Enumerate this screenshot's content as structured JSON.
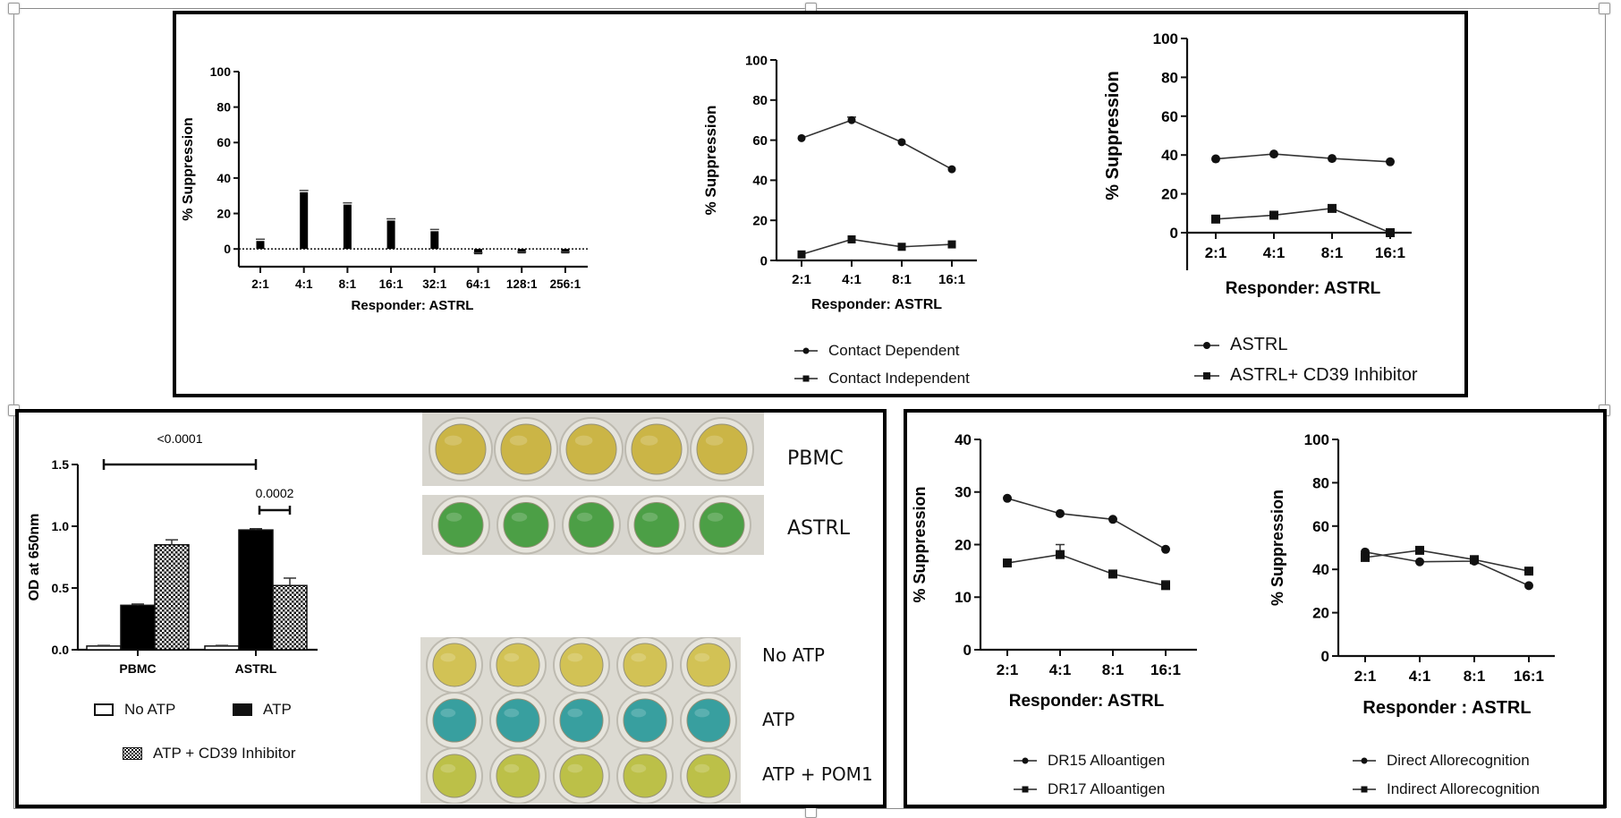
{
  "panels": {
    "top": {
      "chart_a": {
        "type": "bar",
        "title": "",
        "xlabel": "Responder: ASTRL",
        "ylabel": "% Suppression",
        "ylim": [
          -10,
          100
        ],
        "yticks": [
          0,
          20,
          40,
          60,
          80,
          100
        ],
        "ytick_labels": [
          "0",
          "20",
          "40",
          "60",
          "80",
          "100"
        ],
        "categories": [
          "2:1",
          "4:1",
          "8:1",
          "16:1",
          "32:1",
          "64:1",
          "128:1",
          "256:1"
        ],
        "values": [
          4.5,
          32,
          25,
          16,
          10,
          -3,
          -2.5,
          -2.5
        ],
        "errors": [
          1,
          1,
          1,
          1,
          1,
          0.8,
          0.8,
          0.8
        ],
        "reference_line": 0
      },
      "chart_b": {
        "type": "line",
        "xlabel": "Responder: ASTRL",
        "ylabel": "% Suppression",
        "ylim": [
          0,
          100
        ],
        "yticks": [
          0,
          20,
          40,
          60,
          80,
          100
        ],
        "ytick_labels": [
          "0",
          "20",
          "40",
          "60",
          "80",
          "100"
        ],
        "categories": [
          "2:1",
          "4:1",
          "8:1",
          "16:1"
        ],
        "series": [
          {
            "name": "Contact Dependent",
            "marker": "circle",
            "values": [
              61,
              70,
              59,
              45.5
            ],
            "errors": [
              0,
              1.5,
              0,
              0
            ]
          },
          {
            "name": "Contact Independent",
            "marker": "square",
            "values": [
              3,
              10.5,
              6.8,
              8
            ],
            "errors": [
              0,
              0,
              0,
              0
            ]
          }
        ]
      },
      "chart_c": {
        "type": "line",
        "xlabel": "Responder: ASTRL",
        "ylabel": "% Suppression",
        "ylim": [
          -20,
          100
        ],
        "yticks": [
          0,
          20,
          40,
          60,
          80,
          100
        ],
        "ytick_labels": [
          "0",
          "20",
          "40",
          "60",
          "80",
          "100"
        ],
        "categories": [
          "2:1",
          "4:1",
          "8:1",
          "16:1"
        ],
        "series": [
          {
            "name": "ASTRL",
            "marker": "circle",
            "values": [
              38,
              40.5,
              38.2,
              36.5
            ]
          },
          {
            "name": "ASTRL+ CD39 Inhibitor",
            "marker": "square",
            "values": [
              7,
              9,
              12.5,
              0
            ]
          }
        ]
      }
    },
    "bottom_left": {
      "chart_d": {
        "type": "bar",
        "xlabel": "",
        "ylabel": "OD at 650nm",
        "ylim": [
          0,
          1.5
        ],
        "yticks": [
          0,
          0.5,
          1.0,
          1.5
        ],
        "ytick_labels": [
          "0.0",
          "0.5",
          "1.0",
          "1.5"
        ],
        "categories": [
          "PBMC",
          "ASTRL"
        ],
        "series": [
          {
            "name": "No ATP",
            "fill": "white",
            "values": [
              0.03,
              0.03
            ],
            "errors": [
              0.005,
              0.005
            ]
          },
          {
            "name": "ATP",
            "fill": "black",
            "values": [
              0.36,
              0.97
            ],
            "errors": [
              0.01,
              0.01
            ]
          },
          {
            "name": "ATP + CD39 Inhibitor",
            "fill": "checker",
            "values": [
              0.85,
              0.52
            ],
            "errors": [
              0.04,
              0.06
            ]
          }
        ],
        "annotations": [
          {
            "text": "<0.0001",
            "from": "PBMC: No ATP",
            "to": "ASTRL: ATP"
          },
          {
            "text": "0.0002",
            "from": "ASTRL: ATP",
            "to": "ASTRL: ATP + CD39 Inhibitor"
          }
        ]
      },
      "photo_top_labels": [
        "PBMC",
        "ASTRL"
      ],
      "photo_bottom_labels": [
        "No ATP",
        "ATP",
        "ATP + POM1"
      ],
      "photo_colors": {
        "pbmc": "#c9b23a",
        "astrl": "#3f9a3a",
        "no_atp": "#d1c04a",
        "atp": "#2a9a9a",
        "atp_pom1": "#b9be3c"
      }
    },
    "bottom_right": {
      "chart_e": {
        "type": "line",
        "xlabel": "Responder: ASTRL",
        "ylabel": "% Suppression",
        "ylim": [
          0,
          40
        ],
        "yticks": [
          0,
          10,
          20,
          30,
          40
        ],
        "ytick_labels": [
          "0",
          "10",
          "20",
          "30",
          "40"
        ],
        "categories": [
          "2:1",
          "4:1",
          "8:1",
          "16:1"
        ],
        "series": [
          {
            "name": "DR15 Alloantigen",
            "marker": "circle",
            "values": [
              28.8,
              25.9,
              24.8,
              19.1
            ],
            "errors": [
              0,
              0,
              0,
              0
            ]
          },
          {
            "name": "DR17 Alloantigen",
            "marker": "square",
            "values": [
              16.5,
              18.1,
              14.4,
              12.2
            ],
            "errors": [
              0,
              1.9,
              0.6,
              0.9
            ]
          }
        ]
      },
      "chart_f": {
        "type": "line",
        "xlabel": "Responder : ASTRL",
        "ylabel": "% Suppression",
        "ylim": [
          0,
          100
        ],
        "yticks": [
          0,
          20,
          40,
          60,
          80,
          100
        ],
        "ytick_labels": [
          "0",
          "20",
          "40",
          "60",
          "80",
          "100"
        ],
        "categories": [
          "2:1",
          "4:1",
          "8:1",
          "16:1"
        ],
        "series": [
          {
            "name": "Direct Allorecognition",
            "marker": "circle",
            "values": [
              48,
              43.5,
              43.8,
              32.5
            ]
          },
          {
            "name": "Indirect Allorecognition",
            "marker": "square",
            "values": [
              45.5,
              48.8,
              44.5,
              39.2
            ]
          }
        ]
      }
    }
  },
  "chart_data": [
    {
      "type": "bar",
      "title": "",
      "xlabel": "Responder: ASTRL",
      "ylabel": "% Suppression",
      "categories": [
        "2:1",
        "4:1",
        "8:1",
        "16:1",
        "32:1",
        "64:1",
        "128:1",
        "256:1"
      ],
      "values": [
        4.5,
        32,
        25,
        16,
        10,
        -3,
        -2.5,
        -2.5
      ],
      "ylim": [
        -10,
        100
      ]
    },
    {
      "type": "line",
      "xlabel": "Responder: ASTRL",
      "ylabel": "% Suppression",
      "categories": [
        "2:1",
        "4:1",
        "8:1",
        "16:1"
      ],
      "series": [
        {
          "name": "Contact Dependent",
          "values": [
            61,
            70,
            59,
            45.5
          ]
        },
        {
          "name": "Contact Independent",
          "values": [
            3,
            10.5,
            6.8,
            8
          ]
        }
      ],
      "ylim": [
        0,
        100
      ],
      "legend": "bottom"
    },
    {
      "type": "line",
      "xlabel": "Responder: ASTRL",
      "ylabel": "% Suppression",
      "categories": [
        "2:1",
        "4:1",
        "8:1",
        "16:1"
      ],
      "series": [
        {
          "name": "ASTRL",
          "values": [
            38,
            40.5,
            38.2,
            36.5
          ]
        },
        {
          "name": "ASTRL+ CD39 Inhibitor",
          "values": [
            7,
            9,
            12.5,
            0
          ]
        }
      ],
      "ylim": [
        -20,
        100
      ],
      "legend": "bottom"
    },
    {
      "type": "bar",
      "ylabel": "OD at 650nm",
      "categories": [
        "PBMC",
        "ASTRL"
      ],
      "series": [
        {
          "name": "No ATP",
          "values": [
            0.03,
            0.03
          ]
        },
        {
          "name": "ATP",
          "values": [
            0.36,
            0.97
          ]
        },
        {
          "name": "ATP + CD39 Inhibitor",
          "values": [
            0.85,
            0.52
          ]
        }
      ],
      "ylim": [
        0,
        1.5
      ],
      "annotations": [
        "<0.0001",
        "0.0002"
      ],
      "legend": "bottom"
    },
    {
      "type": "line",
      "xlabel": "Responder: ASTRL",
      "ylabel": "% Suppression",
      "categories": [
        "2:1",
        "4:1",
        "8:1",
        "16:1"
      ],
      "series": [
        {
          "name": "DR15 Alloantigen",
          "values": [
            28.8,
            25.9,
            24.8,
            19.1
          ]
        },
        {
          "name": "DR17 Alloantigen",
          "values": [
            16.5,
            18.1,
            14.4,
            12.2
          ]
        }
      ],
      "ylim": [
        0,
        40
      ],
      "legend": "bottom"
    },
    {
      "type": "line",
      "xlabel": "Responder : ASTRL",
      "ylabel": "% Suppression",
      "categories": [
        "2:1",
        "4:1",
        "8:1",
        "16:1"
      ],
      "series": [
        {
          "name": "Direct Allorecognition",
          "values": [
            48,
            43.5,
            43.8,
            32.5
          ]
        },
        {
          "name": "Indirect Allorecognition",
          "values": [
            45.5,
            48.8,
            44.5,
            39.2
          ]
        }
      ],
      "ylim": [
        0,
        100
      ],
      "legend": "bottom"
    }
  ]
}
